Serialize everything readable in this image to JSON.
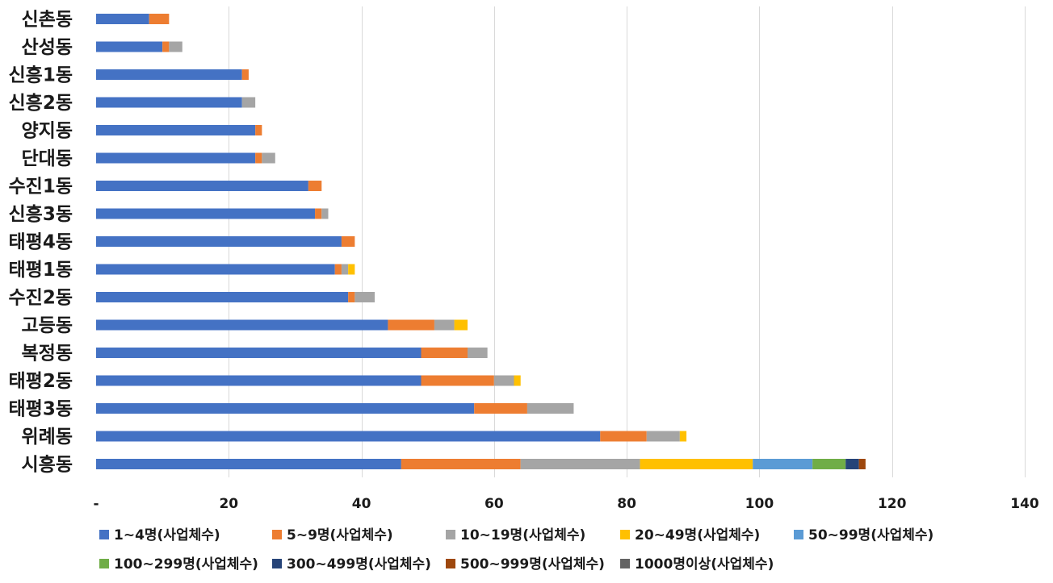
{
  "chart_data": {
    "type": "bar",
    "orientation": "horizontal",
    "stacked": true,
    "title": "",
    "xlabel": "",
    "ylabel": "",
    "xlim": [
      0,
      140
    ],
    "x_ticks": [
      0,
      20,
      40,
      60,
      80,
      100,
      120,
      140
    ],
    "x_tick_labels": [
      "-",
      "20",
      "40",
      "60",
      "80",
      "100",
      "120",
      "140"
    ],
    "grid": "vertical",
    "legend_position": "bottom",
    "categories": [
      "신촌동",
      "산성동",
      "신흥1동",
      "신흥2동",
      "양지동",
      "단대동",
      "수진1동",
      "신흥3동",
      "태평4동",
      "태평1동",
      "수진2동",
      "고등동",
      "복정동",
      "태평2동",
      "태평3동",
      "위례동",
      "시흥동"
    ],
    "series": [
      {
        "name": "1~4명(사업체수)",
        "color": "#4472c4",
        "values": [
          8,
          10,
          22,
          22,
          24,
          24,
          32,
          33,
          37,
          36,
          38,
          44,
          49,
          49,
          57,
          76,
          46
        ]
      },
      {
        "name": "5~9명(사업체수)",
        "color": "#ed7d31",
        "values": [
          3,
          1,
          1,
          0,
          1,
          1,
          2,
          1,
          2,
          1,
          1,
          7,
          7,
          11,
          8,
          7,
          18
        ]
      },
      {
        "name": "10~19명(사업체수)",
        "color": "#a5a5a5",
        "values": [
          0,
          2,
          0,
          2,
          0,
          2,
          0,
          1,
          0,
          1,
          3,
          3,
          3,
          3,
          7,
          5,
          18
        ]
      },
      {
        "name": "20~49명(사업체수)",
        "color": "#ffc000",
        "values": [
          0,
          0,
          0,
          0,
          0,
          0,
          0,
          0,
          0,
          1,
          0,
          2,
          0,
          1,
          0,
          1,
          17
        ]
      },
      {
        "name": "50~99명(사업체수)",
        "color": "#5b9bd5",
        "values": [
          0,
          0,
          0,
          0,
          0,
          0,
          0,
          0,
          0,
          0,
          0,
          0,
          0,
          0,
          0,
          0,
          9
        ]
      },
      {
        "name": "100~299명(사업체수)",
        "color": "#70ad47",
        "values": [
          0,
          0,
          0,
          0,
          0,
          0,
          0,
          0,
          0,
          0,
          0,
          0,
          0,
          0,
          0,
          0,
          5
        ]
      },
      {
        "name": "300~499명(사업체수)",
        "color": "#264478",
        "values": [
          0,
          0,
          0,
          0,
          0,
          0,
          0,
          0,
          0,
          0,
          0,
          0,
          0,
          0,
          0,
          0,
          2
        ]
      },
      {
        "name": "500~999명(사업체수)",
        "color": "#9e480e",
        "values": [
          0,
          0,
          0,
          0,
          0,
          0,
          0,
          0,
          0,
          0,
          0,
          0,
          0,
          0,
          0,
          0,
          1
        ]
      },
      {
        "name": "1000명이상(사업체수)",
        "color": "#636363",
        "values": [
          0,
          0,
          0,
          0,
          0,
          0,
          0,
          0,
          0,
          0,
          0,
          0,
          0,
          0,
          0,
          0,
          0
        ]
      }
    ]
  }
}
